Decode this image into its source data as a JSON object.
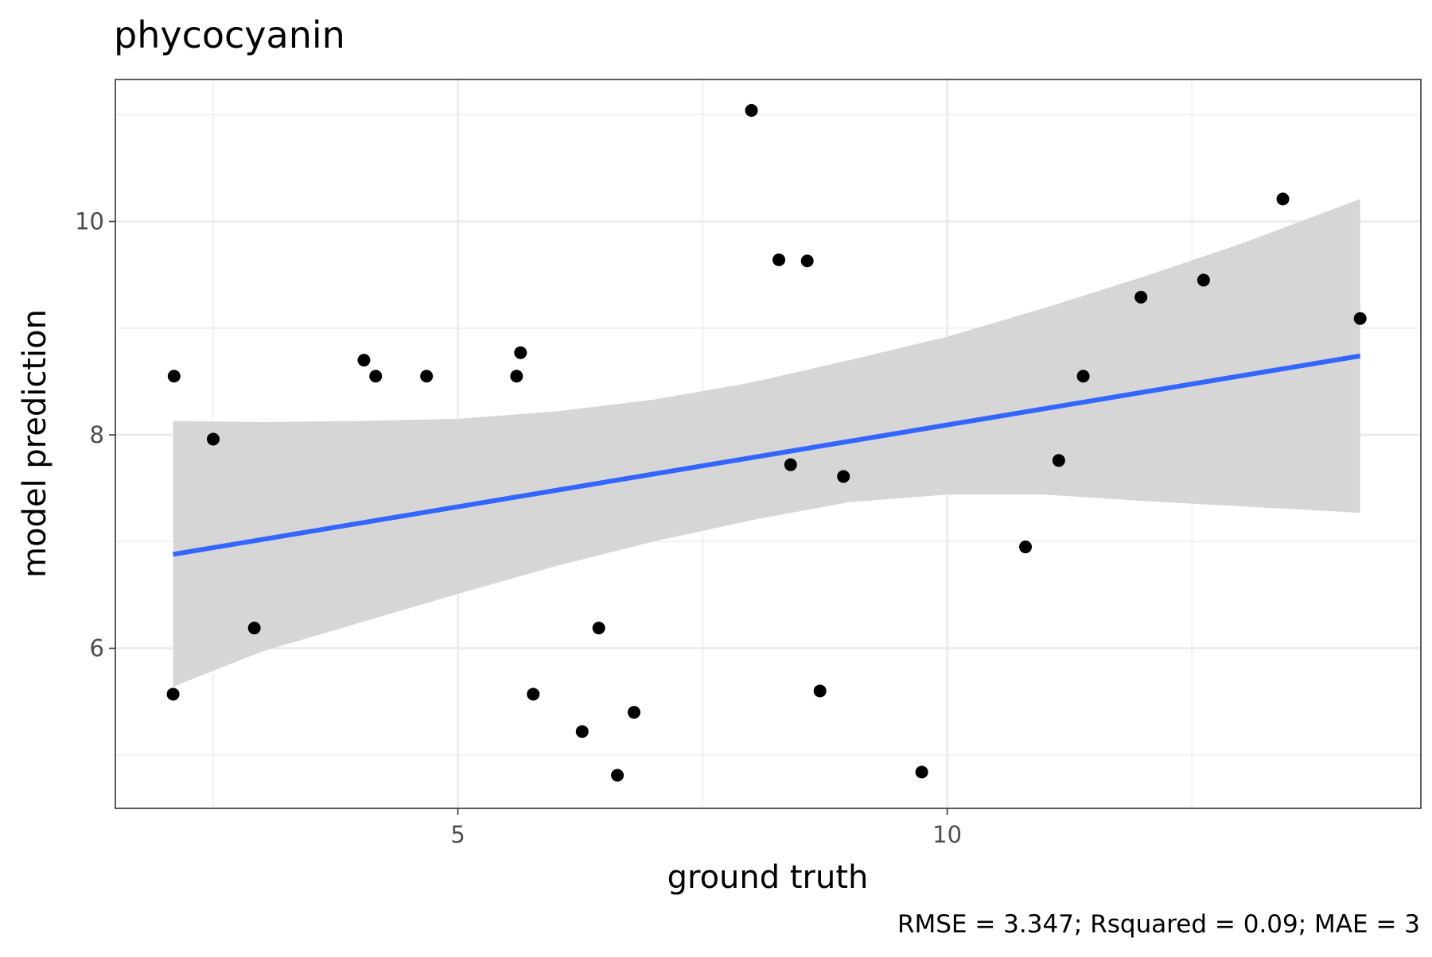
{
  "chart_data": {
    "type": "scatter",
    "title": "phycocyanin",
    "xlabel": "ground truth",
    "ylabel": "model prediction",
    "caption": "RMSE = 3.347; Rsquared = 0.09; MAE = 3",
    "xlim": [
      1.5,
      14.84
    ],
    "ylim": [
      4.5,
      11.33
    ],
    "x_ticks": [
      5,
      10
    ],
    "x_tick_labels": [
      "5",
      "10"
    ],
    "y_ticks": [
      6,
      8,
      10
    ],
    "y_tick_labels": [
      "6",
      "8",
      "10"
    ],
    "x_minor_ticks": [
      2.5,
      7.5,
      12.5
    ],
    "y_minor_ticks": [
      5,
      7,
      9,
      11
    ],
    "grid": true,
    "series": [
      {
        "kind": "points",
        "points": [
          {
            "x": 2.1,
            "y": 8.55
          },
          {
            "x": 2.09,
            "y": 5.57
          },
          {
            "x": 2.5,
            "y": 7.96
          },
          {
            "x": 2.92,
            "y": 6.19
          },
          {
            "x": 4.04,
            "y": 8.7
          },
          {
            "x": 4.16,
            "y": 8.55
          },
          {
            "x": 4.68,
            "y": 8.55
          },
          {
            "x": 5.6,
            "y": 8.55
          },
          {
            "x": 5.64,
            "y": 8.77
          },
          {
            "x": 5.77,
            "y": 5.57
          },
          {
            "x": 6.27,
            "y": 5.22
          },
          {
            "x": 6.44,
            "y": 6.19
          },
          {
            "x": 6.63,
            "y": 4.81
          },
          {
            "x": 6.8,
            "y": 5.4
          },
          {
            "x": 8.0,
            "y": 11.04
          },
          {
            "x": 8.28,
            "y": 9.64
          },
          {
            "x": 8.4,
            "y": 7.72
          },
          {
            "x": 8.57,
            "y": 9.63
          },
          {
            "x": 8.7,
            "y": 5.6
          },
          {
            "x": 8.94,
            "y": 7.61
          },
          {
            "x": 9.74,
            "y": 4.84
          },
          {
            "x": 10.8,
            "y": 6.95
          },
          {
            "x": 11.14,
            "y": 7.76
          },
          {
            "x": 11.39,
            "y": 8.55
          },
          {
            "x": 11.98,
            "y": 9.29
          },
          {
            "x": 12.62,
            "y": 9.45
          },
          {
            "x": 13.43,
            "y": 10.21
          },
          {
            "x": 14.22,
            "y": 9.09
          }
        ],
        "color": "#000000"
      },
      {
        "kind": "regression_line",
        "x": [
          2.09,
          14.22
        ],
        "y": [
          6.88,
          8.74
        ],
        "color": "#3366FF"
      },
      {
        "kind": "confidence_band",
        "x": [
          2.09,
          3.0,
          4.0,
          5.0,
          6.0,
          7.0,
          8.0,
          9.0,
          10.0,
          11.0,
          12.0,
          13.0,
          14.22
        ],
        "lower": [
          5.64,
          5.97,
          6.24,
          6.51,
          6.77,
          7.0,
          7.2,
          7.37,
          7.44,
          7.44,
          7.38,
          7.33,
          7.27
        ],
        "upper": [
          8.13,
          8.12,
          8.13,
          8.15,
          8.22,
          8.33,
          8.49,
          8.7,
          8.92,
          9.19,
          9.48,
          9.79,
          10.21
        ],
        "color": "#D6D6D6"
      }
    ]
  }
}
